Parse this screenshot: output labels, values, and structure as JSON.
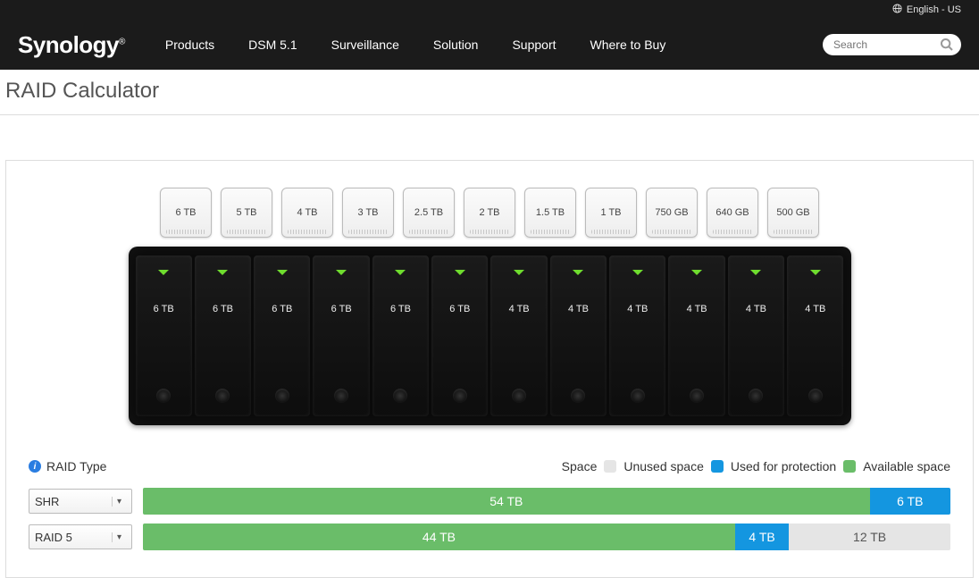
{
  "lang_label": "English - US",
  "brand": "Synology",
  "nav": [
    "Products",
    "DSM 5.1",
    "Surveillance",
    "Solution",
    "Support",
    "Where to Buy"
  ],
  "search_placeholder": "Search",
  "page_title": "RAID Calculator",
  "drive_options": [
    "6 TB",
    "5 TB",
    "4 TB",
    "3 TB",
    "2.5 TB",
    "2 TB",
    "1.5 TB",
    "1 TB",
    "750 GB",
    "640 GB",
    "500 GB"
  ],
  "bays": [
    "6 TB",
    "6 TB",
    "6 TB",
    "6 TB",
    "6 TB",
    "6 TB",
    "4 TB",
    "4 TB",
    "4 TB",
    "4 TB",
    "4 TB",
    "4 TB"
  ],
  "led_color": "#6fdc2e",
  "raid_type_label": "RAID Type",
  "legend": {
    "space": "Space",
    "unused": "Unused space",
    "protection": "Used for protection",
    "available": "Available space"
  },
  "colors": {
    "available": "#6abd69",
    "protection": "#1496e0",
    "unused": "#e5e5e5",
    "bar_total_tb": 60
  },
  "rows": [
    {
      "type": "SHR",
      "segments": [
        {
          "role": "available",
          "label": "54 TB",
          "tb": 54
        },
        {
          "role": "protection",
          "label": "6 TB",
          "tb": 6
        }
      ]
    },
    {
      "type": "RAID 5",
      "segments": [
        {
          "role": "available",
          "label": "44 TB",
          "tb": 44
        },
        {
          "role": "protection",
          "label": "4 TB",
          "tb": 4
        },
        {
          "role": "unused",
          "label": "12 TB",
          "tb": 12
        }
      ]
    }
  ]
}
